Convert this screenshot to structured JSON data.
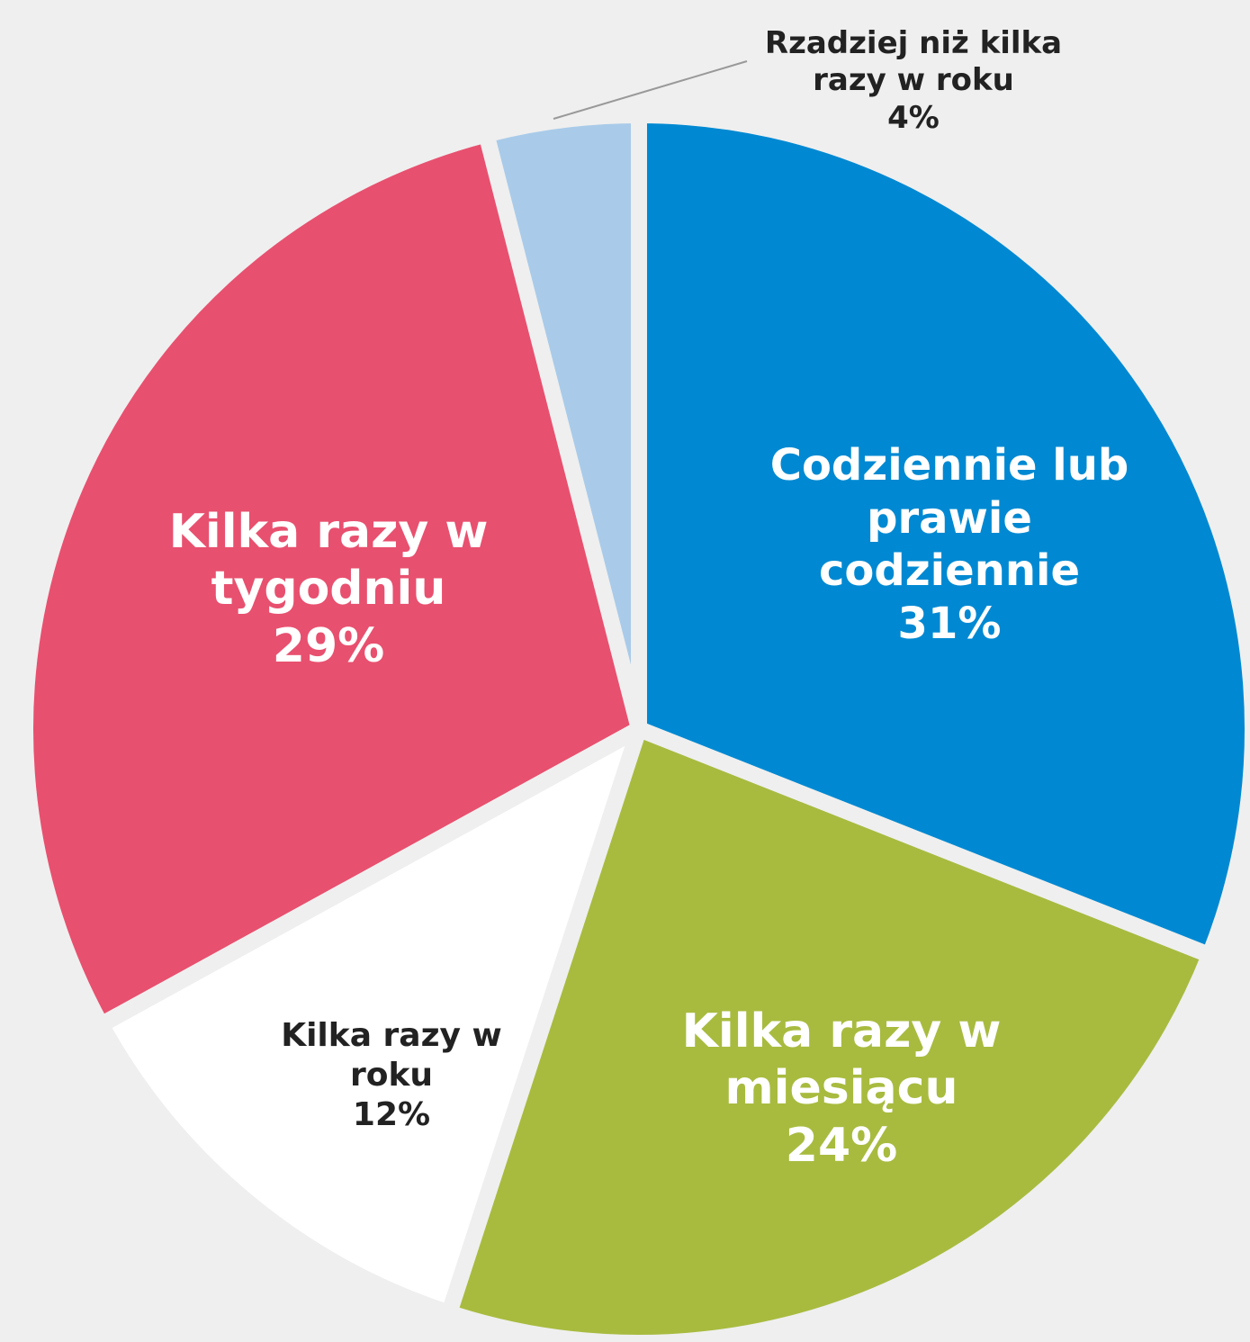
{
  "chart_data": {
    "type": "pie",
    "categories": [
      "Codziennie lub prawie codziennie",
      "Kilka razy w miesiącu",
      "Kilka razy w roku",
      "Kilka razy w tygodniu",
      "Rzadziej niż kilka razy w roku"
    ],
    "values": [
      31,
      24,
      12,
      29,
      4
    ],
    "value_labels": [
      "31%",
      "24%",
      "12%",
      "29%",
      "4%"
    ],
    "colors": [
      "#0089d2",
      "#a8bb3f",
      "#ffffff",
      "#e8506f",
      "#a9cbe9"
    ]
  }
}
